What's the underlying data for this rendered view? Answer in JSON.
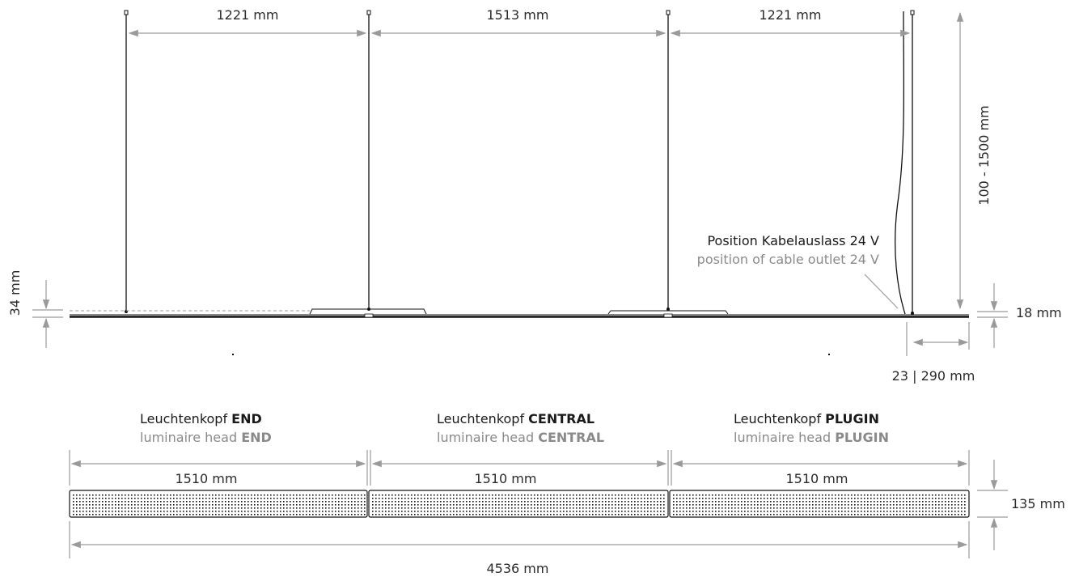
{
  "top_view": {
    "spans": [
      "1221 mm",
      "1513 mm",
      "1221 mm"
    ],
    "suspension_length": "100 - 1500 mm",
    "profile_height": "34 mm",
    "body_height": "18 mm",
    "cable_offset": "23 | 290 mm",
    "cable_outlet_de": "Position Kabelauslass 24 V",
    "cable_outlet_en": "position of cable outlet 24 V"
  },
  "heads": [
    {
      "de_prefix": "Leuchtenkopf ",
      "en_prefix": "luminaire head ",
      "name": "END",
      "length": "1510 mm"
    },
    {
      "de_prefix": "Leuchtenkopf ",
      "en_prefix": "luminaire head ",
      "name": "CENTRAL",
      "length": "1510 mm"
    },
    {
      "de_prefix": "Leuchtenkopf ",
      "en_prefix": "luminaire head ",
      "name": "PLUGIN",
      "length": "1510 mm"
    }
  ],
  "bottom_view": {
    "total_length": "4536 mm",
    "depth": "135 mm"
  },
  "colors": {
    "dimension_line": "#9a9a9a",
    "drawing_line": "#111111",
    "secondary_text": "#8a8a8a"
  }
}
